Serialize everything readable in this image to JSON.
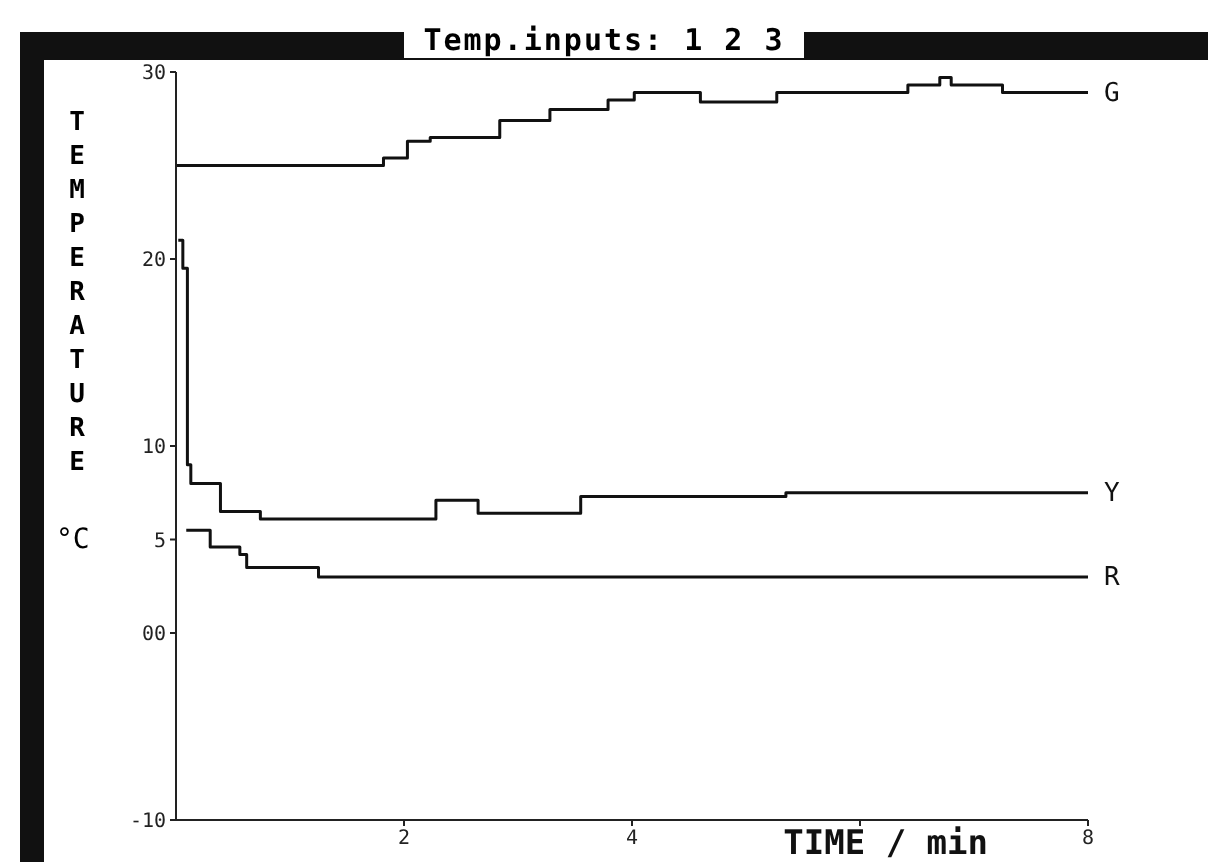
{
  "chart_data": {
    "type": "step",
    "title": "Temp.inputs: 1 2 3",
    "xlabel": "TIME / min",
    "ylabel": "TEMPERATURE",
    "annotations": [
      "°C"
    ],
    "xlim": [
      0,
      8
    ],
    "xticks": [
      2,
      4,
      {
        "value": 6,
        "label": null
      },
      8
    ],
    "ylim": [
      -10,
      30
    ],
    "yticks": [
      -10,
      {
        "value": 0,
        "label": "00"
      },
      5,
      10,
      20,
      30
    ],
    "marker": "none",
    "line_style": "solid",
    "series": [
      {
        "name": "G",
        "color": "#111111",
        "x": [
          0,
          1.82,
          2.03,
          2.23,
          2.84,
          3.28,
          3.79,
          4.02,
          4.6,
          5.27,
          6.42,
          6.7,
          6.8,
          7.25,
          8
        ],
        "values": [
          25,
          25.4,
          26.3,
          26.5,
          27.4,
          28,
          28.5,
          28.9,
          28.4,
          28.9,
          29.3,
          29.7,
          29.3,
          28.9,
          28.9
        ]
      },
      {
        "name": "Y",
        "color": "#111111",
        "x": [
          0.02,
          0.06,
          0.1,
          0.13,
          0.39,
          0.74,
          2.28,
          2.65,
          3.55,
          5.35,
          8
        ],
        "values": [
          21,
          19.5,
          9,
          8,
          6.5,
          6.1,
          7.1,
          6.4,
          7.3,
          7.5,
          7.5
        ]
      },
      {
        "name": "R",
        "color": "#111111",
        "x": [
          0.09,
          0.3,
          0.56,
          0.62,
          1.25,
          8
        ],
        "values": [
          5.5,
          4.6,
          4.2,
          3.5,
          3,
          3
        ]
      }
    ]
  }
}
